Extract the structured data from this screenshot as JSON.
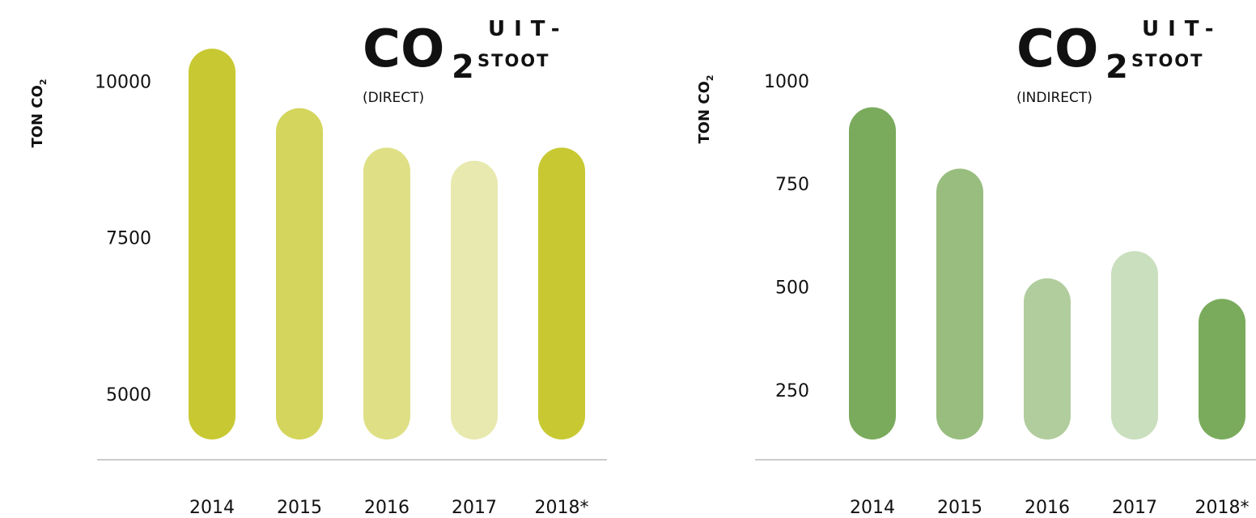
{
  "chart_data": [
    {
      "type": "bar",
      "title": "CO",
      "title_sub": "2",
      "title_line1": "UIT-",
      "title_line2": "STOOT",
      "subtitle": "(DIRECT)",
      "ylabel": "TON CO",
      "ylabel_sub": "2",
      "categories": [
        "2014",
        "2015",
        "2016",
        "2017",
        "2018*"
      ],
      "values": [
        10520,
        9570,
        8940,
        8730,
        8940
      ],
      "colors": [
        "#c8c932",
        "#d4d55c",
        "#dfe086",
        "#e8e9ae",
        "#c8c932"
      ],
      "ylim": [
        4275,
        10600
      ],
      "yticks": [
        5000,
        7500,
        10000
      ]
    },
    {
      "type": "bar",
      "title": "CO",
      "title_sub": "2",
      "title_line1": "UIT-",
      "title_line2": "STOOT",
      "subtitle": "(INDIRECT)",
      "ylabel": "TON CO",
      "ylabel_sub": "2",
      "categories": [
        "2014",
        "2015",
        "2016",
        "2017",
        "2018*"
      ],
      "values": [
        936,
        787,
        521,
        587,
        471
      ],
      "colors": [
        "#7aab5c",
        "#98bd7e",
        "#b1cd9d",
        "#cadfbe",
        "#7aab5c"
      ],
      "ylim": [
        130,
        1090
      ],
      "yticks": [
        250,
        500,
        750,
        1000
      ]
    }
  ]
}
